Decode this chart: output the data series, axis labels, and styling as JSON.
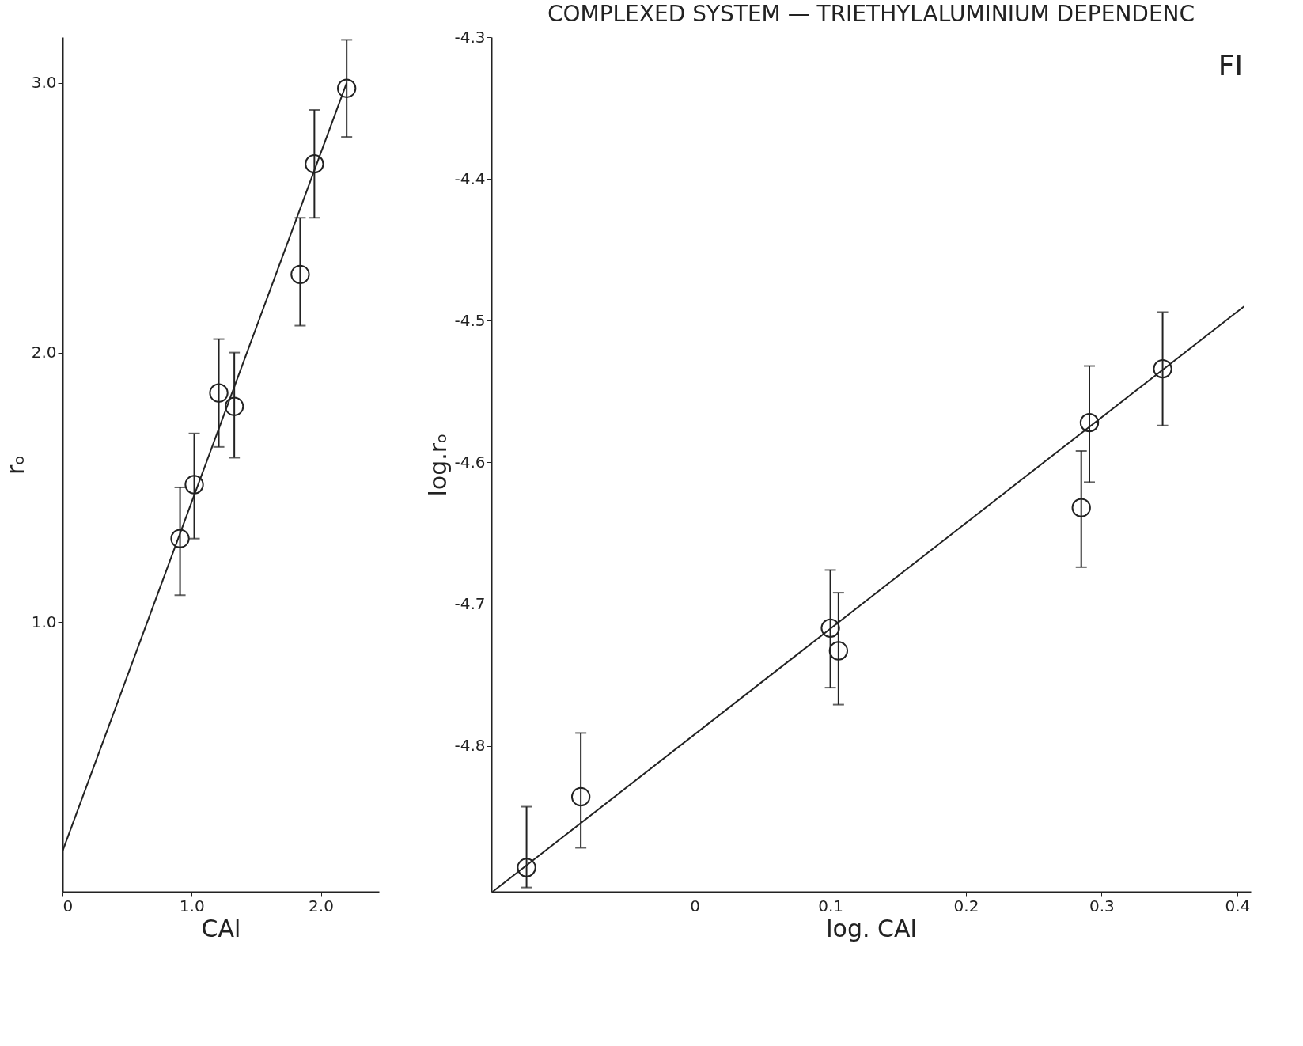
{
  "chart_data": [
    {
      "type": "scatter",
      "xlabel": "CAl",
      "ylabel": "rₒ",
      "xlim": [
        0,
        2.45
      ],
      "ylim": [
        0,
        3.17
      ],
      "xticks": [
        0,
        {
          "value": 1.0,
          "label": "1.0"
        },
        {
          "value": 2.0,
          "label": "2.0"
        }
      ],
      "yticks": [
        {
          "value": 1.0,
          "label": "1.0"
        },
        {
          "value": 2.0,
          "label": "2.0"
        },
        {
          "value": 3.0,
          "label": "3.0"
        }
      ],
      "grid": false,
      "series": [
        {
          "color": "#222222",
          "marker": "circle",
          "x": [
            0.91,
            1.02,
            1.21,
            1.33,
            1.84,
            1.95,
            2.2
          ],
          "values": [
            1.31,
            1.51,
            1.85,
            1.8,
            2.29,
            2.7,
            2.98
          ],
          "errors": [
            [
              1.1,
              1.5
            ],
            [
              1.31,
              1.7
            ],
            [
              1.65,
              2.05
            ],
            [
              1.61,
              2.0
            ],
            [
              2.1,
              2.5
            ],
            [
              2.5,
              2.9
            ],
            [
              2.8,
              3.16
            ]
          ]
        },
        {
          "type": "line",
          "color": "#222222",
          "line_style": "solid",
          "x": [
            0,
            2.2
          ],
          "values": [
            0.15,
            3.0
          ]
        }
      ]
    },
    {
      "type": "scatter",
      "title": "COMPLEXED  SYSTEM — TRIETHYLALUMINIUM  DEPENDENC",
      "annotations": [
        "FI"
      ],
      "xlabel": "log. CAl",
      "ylabel": "log.rₒ",
      "xlim": [
        -0.15,
        0.41
      ],
      "ylim": [
        -4.903,
        -4.3
      ],
      "xticks": [
        0,
        {
          "value": 0.1,
          "label": "0.1"
        },
        {
          "value": 0.2,
          "label": "0.2"
        },
        {
          "value": 0.3,
          "label": "0.3"
        },
        {
          "value": 0.4,
          "label": "0.4"
        }
      ],
      "yticks": [
        -4.3,
        -4.4,
        -4.5,
        -4.6,
        -4.7,
        -4.8
      ],
      "grid": false,
      "series": [
        {
          "color": "#222222",
          "marker": "circle",
          "x": [
            -0.124,
            -0.084,
            0.1,
            0.106,
            0.285,
            0.291,
            0.345
          ],
          "values": [
            -4.886,
            -4.836,
            -4.717,
            -4.733,
            -4.632,
            -4.572,
            -4.534
          ],
          "errors": [
            [
              -4.9,
              -4.843
            ],
            [
              -4.872,
              -4.791
            ],
            [
              -4.759,
              -4.676
            ],
            [
              -4.771,
              -4.692
            ],
            [
              -4.674,
              -4.592
            ],
            [
              -4.614,
              -4.532
            ],
            [
              -4.574,
              -4.494
            ]
          ]
        },
        {
          "type": "line",
          "color": "#222222",
          "line_style": "solid",
          "x": [
            -0.149,
            0.405
          ],
          "values": [
            -4.903,
            -4.49
          ]
        }
      ]
    }
  ]
}
